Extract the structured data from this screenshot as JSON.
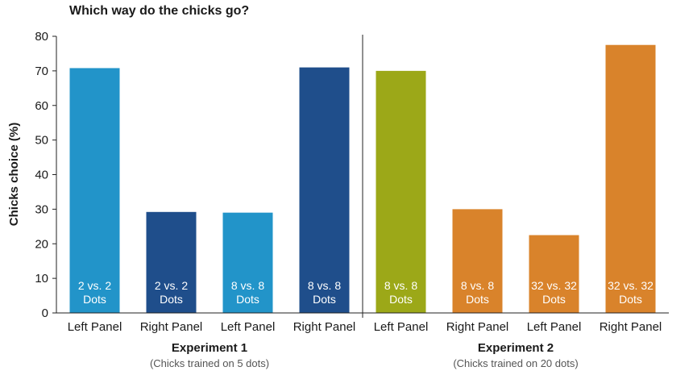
{
  "chart_data": {
    "type": "bar",
    "title": "Which way do the chicks go?",
    "ylabel": "Chicks choice (%)",
    "xlabel": "",
    "ylim": [
      0,
      80
    ],
    "yticks": [
      0,
      10,
      20,
      30,
      40,
      50,
      60,
      70,
      80
    ],
    "grid": false,
    "bars": [
      {
        "category": "Left Panel",
        "label_lines": [
          "2 vs. 2",
          "Dots"
        ],
        "value": 70.8,
        "color": "#2294c9"
      },
      {
        "category": "Right Panel",
        "label_lines": [
          "2 vs. 2",
          "Dots"
        ],
        "value": 29.2,
        "color": "#1f4e8b"
      },
      {
        "category": "Left Panel",
        "label_lines": [
          "8 vs. 8",
          "Dots"
        ],
        "value": 29.0,
        "color": "#2294c9"
      },
      {
        "category": "Right Panel",
        "label_lines": [
          "8 vs. 8",
          "Dots"
        ],
        "value": 71.0,
        "color": "#1f4e8b"
      },
      {
        "category": "Left Panel",
        "label_lines": [
          "8 vs. 8",
          "Dots"
        ],
        "value": 70.0,
        "color": "#9ca818"
      },
      {
        "category": "Right Panel",
        "label_lines": [
          "8 vs. 8",
          "Dots"
        ],
        "value": 30.0,
        "color": "#d9832b"
      },
      {
        "category": "Left Panel",
        "label_lines": [
          "32 vs. 32",
          "Dots"
        ],
        "value": 22.5,
        "color": "#d9832b"
      },
      {
        "category": "Right Panel",
        "label_lines": [
          "32 vs. 32",
          "Dots"
        ],
        "value": 77.5,
        "color": "#d9832b"
      }
    ],
    "groups": [
      {
        "title": "Experiment 1",
        "subtitle": "(Chicks trained on 5 dots)",
        "bar_indices": [
          0,
          1,
          2,
          3
        ]
      },
      {
        "title": "Experiment 2",
        "subtitle": "(Chicks trained on 20 dots)",
        "bar_indices": [
          4,
          5,
          6,
          7
        ]
      }
    ]
  }
}
